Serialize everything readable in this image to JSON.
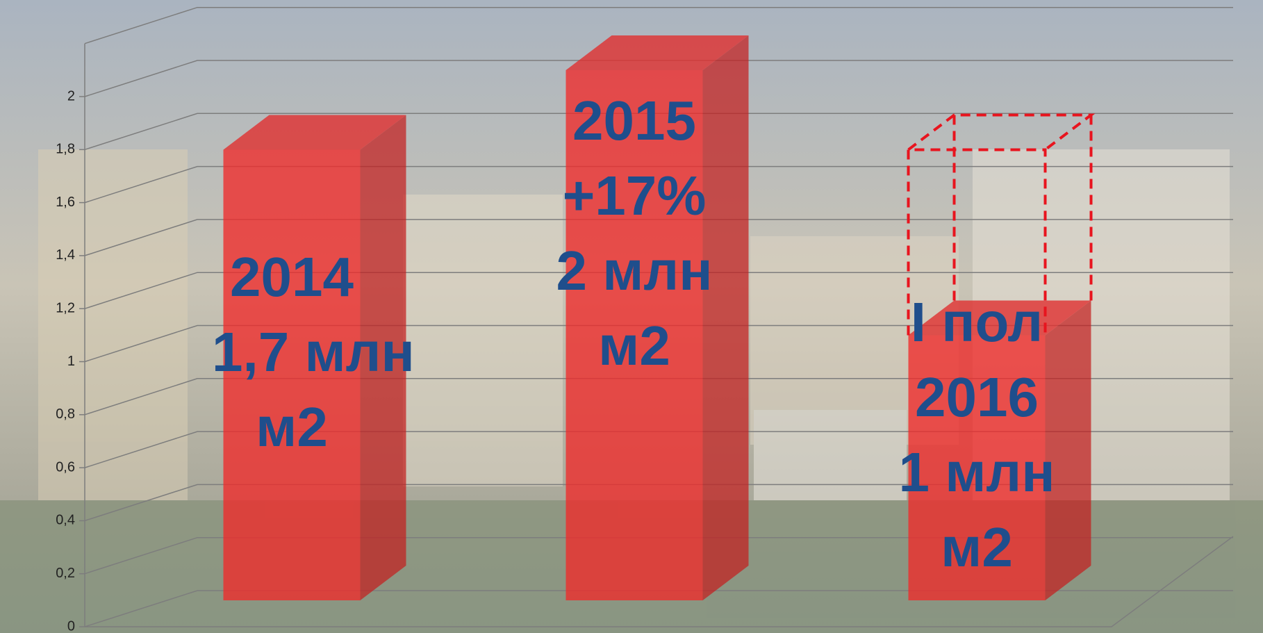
{
  "chart_data": {
    "type": "bar3d",
    "categories": [
      "2014",
      "2015",
      "I пол 2016"
    ],
    "values": [
      1.7,
      2,
      1
    ],
    "value_labels": [
      "1,7 млн",
      "2 млн",
      "1 млн"
    ],
    "annotations": [
      null,
      "+17%",
      null
    ],
    "unit": "м2",
    "projection": 1.7,
    "color": "#f02a2a",
    "label_color": "#1f4e8c",
    "ylim": [
      0,
      2.2
    ],
    "yticks": [
      0,
      {
        "value": 0.2,
        "label": "0,2"
      },
      {
        "value": 0.4,
        "label": "0,4"
      },
      {
        "value": 0.6,
        "label": "0,6"
      },
      {
        "value": 0.8,
        "label": "0,8"
      },
      1,
      {
        "value": 1.2,
        "label": "1,2"
      },
      {
        "value": 1.4,
        "label": "1,4"
      },
      {
        "value": 1.6,
        "label": "1,6"
      },
      {
        "value": 1.8,
        "label": "1,8"
      },
      2
    ],
    "grid": true
  }
}
